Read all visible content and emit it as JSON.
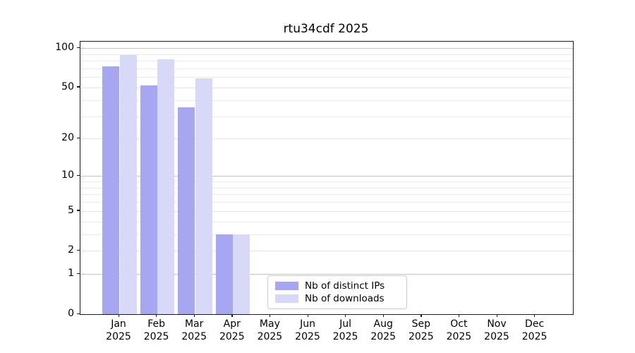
{
  "chart_data": {
    "type": "bar",
    "title": "rtu34cdf 2025",
    "year": "2025",
    "categories": [
      "Jan",
      "Feb",
      "Mar",
      "Apr",
      "May",
      "Jun",
      "Jul",
      "Aug",
      "Sep",
      "Oct",
      "Nov",
      "Dec"
    ],
    "series": [
      {
        "name": "Nb of distinct IPs",
        "color": "#a6a6f1",
        "values": [
          73,
          52,
          35,
          3,
          0,
          0,
          0,
          0,
          0,
          0,
          0,
          0
        ]
      },
      {
        "name": "Nb of downloads",
        "color": "#d8d8f8",
        "values": [
          88,
          82,
          59,
          3,
          0,
          0,
          0,
          0,
          0,
          0,
          0,
          0
        ]
      }
    ],
    "xlabel": "",
    "ylabel": "",
    "yscale": "log1p",
    "ylim": [
      0,
      112
    ],
    "y_tick_labels": [
      0,
      1,
      2,
      5,
      10,
      20,
      50,
      100
    ],
    "y_decade_gridlines": [
      1,
      10,
      100
    ],
    "y_level_gridlines": [
      2,
      5,
      20,
      50
    ],
    "y_minor_gridlines": [
      3,
      4,
      6,
      7,
      8,
      9,
      30,
      40,
      60,
      70,
      80,
      90
    ],
    "grid": "on",
    "legend_position": "lower center-right inside plot",
    "colors": {
      "grid_decade": "#c3c3c3",
      "grid_level": "#e4e4e4",
      "grid_minor": "#eaeaea",
      "spine": "#1a1a1a",
      "text": "#000000",
      "background": "#ffffff"
    }
  }
}
